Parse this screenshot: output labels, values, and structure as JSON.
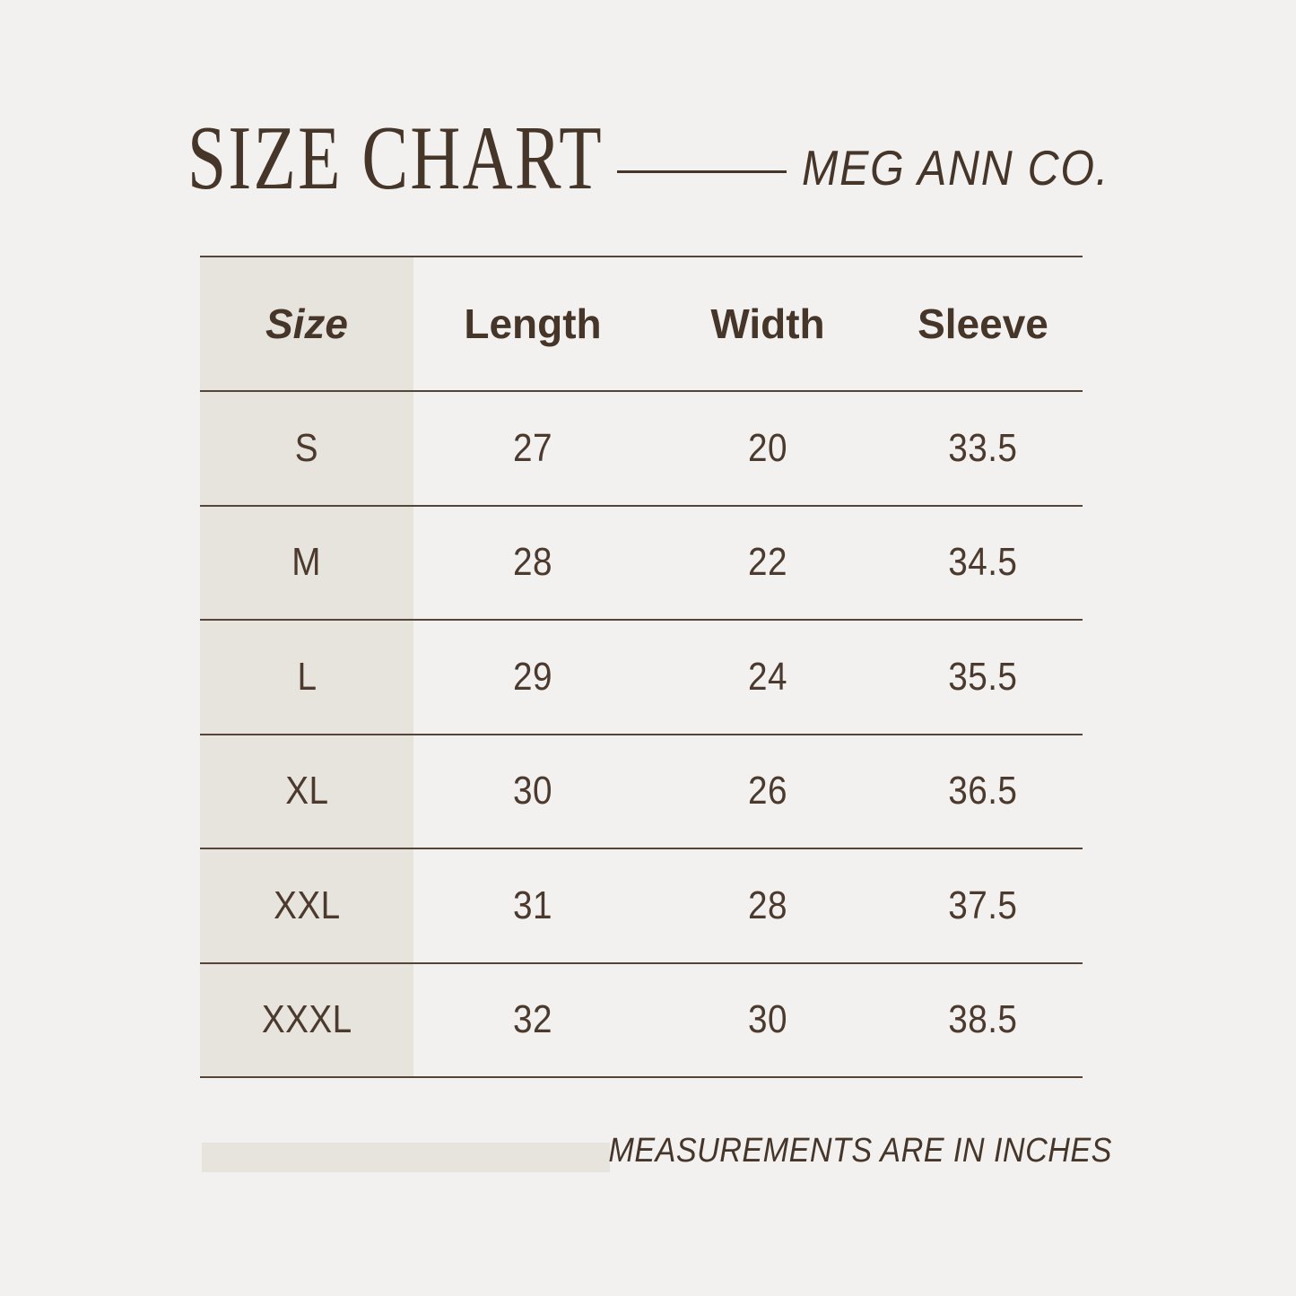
{
  "colors": {
    "background": "#f2f1ef",
    "accent_beige": "#e7e4dd",
    "text_brown": "#46362a",
    "line_brown": "#544538"
  },
  "header": {
    "title": "SIZE CHART",
    "brand": "MEG ANN CO."
  },
  "chart_data": {
    "type": "table",
    "title": "SIZE CHART",
    "columns": [
      "Size",
      "Length",
      "Width",
      "Sleeve"
    ],
    "rows": [
      [
        "S",
        "27",
        "20",
        "33.5"
      ],
      [
        "M",
        "28",
        "22",
        "34.5"
      ],
      [
        "L",
        "29",
        "24",
        "35.5"
      ],
      [
        "XL",
        "30",
        "26",
        "36.5"
      ],
      [
        "XXL",
        "31",
        "28",
        "37.5"
      ],
      [
        "XXXL",
        "32",
        "30",
        "38.5"
      ]
    ],
    "units": "inches"
  },
  "footer": {
    "note": "MEASUREMENTS ARE IN INCHES"
  }
}
